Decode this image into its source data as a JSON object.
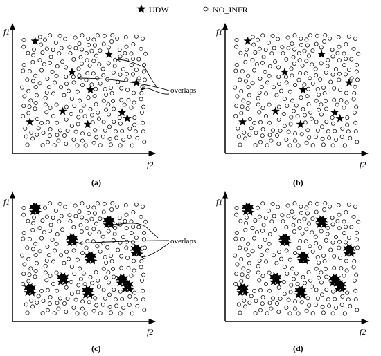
{
  "legend": {
    "star_label": "UDW",
    "circle_label": "NO_INFR"
  },
  "annotation": "overlaps",
  "panels": [
    {
      "id": "a",
      "caption": "(a)",
      "y_label": "f1",
      "x_label": "f2",
      "stars": "single",
      "overlaps": true
    },
    {
      "id": "b",
      "caption": "(b)",
      "y_label": "f1",
      "x_label": "f2",
      "stars": "single",
      "overlaps": false
    },
    {
      "id": "c",
      "caption": "(c)",
      "y_label": "f1",
      "x_label": "f2",
      "stars": "cluster",
      "overlaps": true
    },
    {
      "id": "d",
      "caption": "(d)",
      "y_label": "f1",
      "x_label": "f2",
      "stars": "cluster",
      "overlaps": false
    }
  ],
  "colors": {
    "ink": "#000000",
    "background": "#ffffff"
  }
}
